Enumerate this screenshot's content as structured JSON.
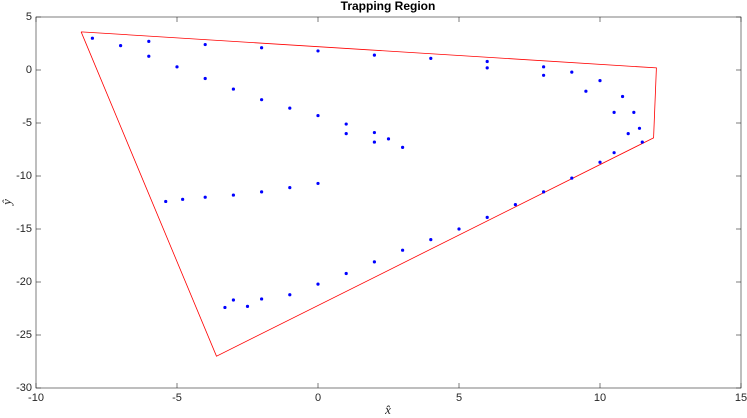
{
  "chart_data": {
    "type": "scatter",
    "title": "Trapping Region",
    "xlabel": "x̂",
    "ylabel": "ŷ",
    "x": [
      -8,
      -6,
      -4,
      -2,
      0,
      2,
      4,
      6,
      8,
      9,
      10,
      10.8,
      11.2,
      11.4,
      11.5,
      6,
      8,
      9.5,
      10.5,
      11,
      -7,
      -6,
      -5,
      -4,
      -3,
      -2,
      -1,
      0,
      1,
      2,
      2.5,
      3,
      2,
      1,
      -3.3,
      -2.5,
      -1,
      0,
      1,
      2,
      3,
      4,
      5,
      6,
      7,
      8,
      9,
      10,
      10.5,
      -2,
      -3,
      -5.4,
      -4.8,
      -4,
      -3,
      -2,
      -1,
      0
    ],
    "values": [
      3,
      2.7,
      2.4,
      2.1,
      1.8,
      1.4,
      1.1,
      0.8,
      0.3,
      -0.2,
      -1,
      -2.5,
      -4,
      -5.5,
      -6.8,
      0.2,
      -0.5,
      -2,
      -4,
      -6,
      2.3,
      1.3,
      0.3,
      -0.8,
      -1.8,
      -2.8,
      -3.6,
      -4.3,
      -5.1,
      -5.9,
      -6.5,
      -7.3,
      -6.8,
      -6,
      -22.4,
      -22.3,
      -21.2,
      -20.2,
      -19.2,
      -18.1,
      -17,
      -16,
      -15,
      -13.9,
      -12.7,
      -11.5,
      -10.2,
      -8.7,
      -7.8,
      -21.6,
      -21.7,
      -12.4,
      -12.2,
      -12,
      -11.8,
      -11.5,
      -11.1,
      -10.7
    ],
    "color": "#0000ff",
    "boundary": {
      "x": [
        -8.4,
        12,
        11.9,
        -3.6,
        -8.4
      ],
      "y": [
        3.6,
        0.2,
        -6.4,
        -27,
        3.6
      ],
      "color": "#ff0000"
    },
    "xlim": [
      -10,
      15
    ],
    "xticks": [
      -10,
      -5,
      0,
      5,
      10,
      15
    ],
    "ylim": [
      -30,
      5
    ],
    "yticks": [
      -30,
      -25,
      -20,
      -15,
      -10,
      -5,
      0,
      5
    ]
  }
}
